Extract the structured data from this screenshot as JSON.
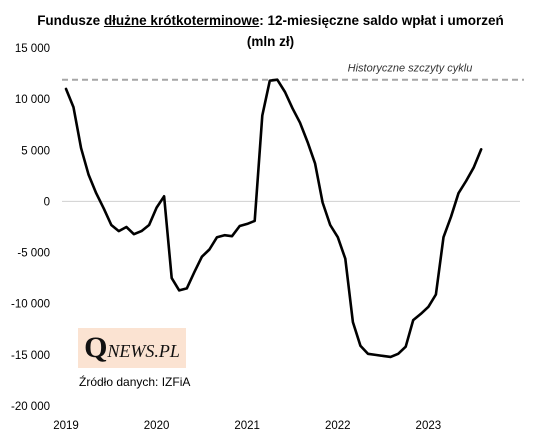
{
  "header": {
    "title_prefix": "Fundusze ",
    "title_underlined": "dłużne krótkoterminowe",
    "title_suffix": ": 12-miesięczne saldo wpłat i umorzeń",
    "title_line2": "(mln zł)"
  },
  "logo": {
    "q": "Q",
    "rest": "NEWS.PL"
  },
  "source": "Źródło danych: IZFiA",
  "colors": {
    "line": "#000000",
    "reference": "#a6a6a6",
    "logo_bg": "#fbe3d2"
  },
  "chart_data": {
    "type": "line",
    "y_ticks": [
      "15 000",
      "10 000",
      "5 000",
      "0",
      "-5 000",
      "-10 000",
      "-15 000",
      "-20 000"
    ],
    "y_tick_values": [
      15000,
      10000,
      5000,
      0,
      -5000,
      -10000,
      -15000,
      -20000
    ],
    "x_ticks": [
      "2019",
      "2020",
      "2021",
      "2022",
      "2023"
    ],
    "x_tick_values": [
      2019,
      2020,
      2021,
      2022,
      2023
    ],
    "ylim": [
      -20000,
      15000
    ],
    "xlim": [
      2019,
      2024.1
    ],
    "grid": false,
    "reference_line": {
      "label": "Historyczne  szczyty  cyklu",
      "value": 11900
    },
    "series": [
      {
        "x": [
          2019.0,
          2019.083,
          2019.167,
          2019.25,
          2019.333,
          2019.417,
          2019.5,
          2019.583,
          2019.667,
          2019.75,
          2019.833,
          2019.917,
          2020.0,
          2020.083,
          2020.167,
          2020.25,
          2020.333,
          2020.417,
          2020.5,
          2020.583,
          2020.667,
          2020.75,
          2020.833,
          2020.917,
          2021.0,
          2021.083,
          2021.167,
          2021.25,
          2021.333,
          2021.417,
          2021.5,
          2021.583,
          2021.667,
          2021.75,
          2021.833,
          2021.917,
          2022.0,
          2022.083,
          2022.167,
          2022.25,
          2022.333,
          2022.417,
          2022.5,
          2022.583,
          2022.667,
          2022.75,
          2022.833,
          2022.917,
          2023.0,
          2023.083,
          2023.167,
          2023.25,
          2023.333,
          2023.417,
          2023.5,
          2023.583
        ],
        "values": [
          11000,
          9200,
          5200,
          2600,
          800,
          -700,
          -2300,
          -2900,
          -2500,
          -3200,
          -2900,
          -2300,
          -600,
          500,
          -7500,
          -8700,
          -8500,
          -6900,
          -5400,
          -4700,
          -3500,
          -3300,
          -3400,
          -2400,
          -2200,
          -1900,
          8400,
          11800,
          11900,
          10700,
          9100,
          7700,
          5800,
          3700,
          -100,
          -2300,
          -3500,
          -5600,
          -11800,
          -14100,
          -14900,
          -15000,
          -15100,
          -15200,
          -14900,
          -14200,
          -11600,
          -11000,
          -10300,
          -9100,
          -3500,
          -1500,
          800,
          2000,
          3300,
          5100
        ]
      }
    ]
  }
}
